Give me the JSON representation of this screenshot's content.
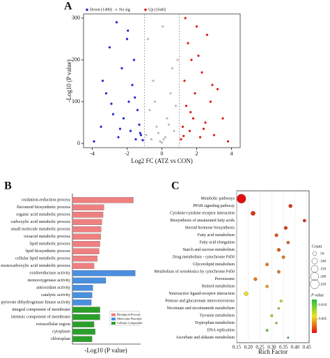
{
  "chart_data": [
    {
      "type": "scatter",
      "panel": "A",
      "xlabel": "Log2 FC (ATZ vs CON)",
      "ylabel": "-Log10 (P value)",
      "xlim": [
        -4.5,
        4.5
      ],
      "xticks": [
        -4,
        -2,
        0,
        2,
        4
      ],
      "ylim": [
        -10,
        310
      ],
      "yticks": [
        0,
        100,
        200,
        300
      ],
      "thresholds": [
        -1,
        1
      ],
      "series": [
        {
          "name": "Down (1490)",
          "color": "#2222cc",
          "x": [
            -3.9,
            -3.5,
            -3.2,
            -3.0,
            -2.8,
            -2.6,
            -2.5,
            -2.3,
            -2.2,
            -2.0,
            -1.9,
            -1.8,
            -1.7,
            -1.6,
            -1.5,
            -1.4,
            -1.3,
            -1.2,
            -1.1,
            -3.4,
            -2.9,
            -2.4,
            -1.95,
            -1.55,
            -1.25
          ],
          "values": [
            5,
            40,
            120,
            230,
            70,
            290,
            15,
            180,
            60,
            250,
            100,
            30,
            140,
            200,
            10,
            80,
            45,
            20,
            8,
            150,
            95,
            35,
            270,
            110,
            25
          ]
        },
        {
          "name": "No sig",
          "color": "#bbbbbb",
          "x": [
            -0.9,
            -0.7,
            -0.5,
            -0.3,
            -0.1,
            0,
            0.1,
            0.3,
            0.5,
            0.7,
            0.9,
            -0.8,
            -0.4,
            0.2,
            0.6,
            0.8,
            -0.6,
            0.4,
            -0.2,
            0.05
          ],
          "values": [
            20,
            80,
            150,
            40,
            5,
            2,
            10,
            60,
            120,
            30,
            200,
            250,
            100,
            15,
            180,
            90,
            10,
            45,
            25,
            280
          ]
        },
        {
          "name": "Up (1640)",
          "color": "#e01515",
          "x": [
            1.1,
            1.2,
            1.3,
            1.4,
            1.5,
            1.6,
            1.7,
            1.8,
            1.9,
            2.0,
            2.2,
            2.3,
            2.5,
            2.6,
            2.8,
            3.0,
            3.2,
            3.5,
            3.8,
            1.35,
            1.65,
            2.1,
            2.4,
            2.9,
            1.25
          ],
          "values": [
            10,
            40,
            150,
            90,
            240,
            30,
            200,
            60,
            120,
            280,
            15,
            170,
            50,
            260,
            100,
            20,
            130,
            60,
            5,
            300,
            75,
            210,
            35,
            140,
            18
          ]
        }
      ]
    },
    {
      "type": "barh",
      "panel": "B",
      "xlabel": "-Log10 (P value)",
      "xlim": [
        0,
        17
      ],
      "series": [
        {
          "name": "Biological Process",
          "color": "#f08080",
          "categories": [
            "oxidation-reduction process",
            "flavonoid biosynthetic process",
            "organic acid metabolic process",
            "carboxylic acid metabolic process",
            "small molecule metabolic process",
            "oxoacid metabolic process",
            "lipid metabolic process",
            "lipid biosynthetic process",
            "cellular lipid metabolic process",
            "monocarboxylic acid metabolic process"
          ],
          "values": [
            15.5,
            8,
            7.8,
            7.5,
            7.3,
            7.2,
            7,
            6.8,
            6.3,
            5.5
          ]
        },
        {
          "name": "Molecular Function",
          "color": "#4a8fe0",
          "categories": [
            "oxidoreductase activity",
            "monooxygenase activity",
            "antioxidant activity",
            "catalytic activity",
            "pyruvate dehydrogenase kinase activity"
          ],
          "values": [
            16,
            8.5,
            5.2,
            5,
            4.8
          ]
        },
        {
          "name": "Cellular Component",
          "color": "#2aa02a",
          "categories": [
            "integral component of membrane",
            "intrinsic component of membrane",
            "extracellular region",
            "cytoplasm",
            "chloroplast"
          ],
          "values": [
            7,
            7,
            5.5,
            5.8,
            5
          ]
        }
      ]
    },
    {
      "type": "bubble",
      "panel": "C",
      "xlabel": "Rich Factor",
      "xlim": [
        0.15,
        0.46
      ],
      "xticks": [
        0.15,
        {
          "value": 0.2,
          "label": "0.20"
        },
        0.25,
        {
          "value": 0.3,
          "label": "0.30"
        },
        0.35,
        {
          "value": 0.4,
          "label": "0.40"
        },
        0.45
      ],
      "categories": [
        "Metabolic pathways",
        "PPAR signaling pathway",
        "Cytokine-cytokine receptor interaction",
        "Biosynthesis of unsaturated fatty acids",
        "Steroid hormone biosynthesis",
        "Fatty acid metabolism",
        "Fatty acid elongation",
        "Starch and sucrose metabolism",
        "Drug metabolism - cytochrome P450",
        "Glycerolipid metabolism",
        "Metabolism of xenobiotics by cytochrome P450",
        "Peroxisome",
        "Retinol metabolism",
        "Neuroactive ligand-receptor interaction",
        "Pentose and glucuronate interconversions",
        "Nicotinate and nicotinamide metabolism",
        "Tyrosine metabolism",
        "Tryptophan metabolism",
        "DNA replication",
        "Ascorbate and aldarate metabolism"
      ],
      "values": [
        0.17,
        0.38,
        0.22,
        0.44,
        0.36,
        0.32,
        0.37,
        0.33,
        0.35,
        0.28,
        0.33,
        0.23,
        0.28,
        0.19,
        0.34,
        0.33,
        0.3,
        0.32,
        0.28,
        0.37
      ],
      "counts": [
        250,
        40,
        60,
        30,
        35,
        35,
        25,
        35,
        30,
        30,
        30,
        35,
        25,
        50,
        20,
        15,
        20,
        15,
        18,
        10
      ],
      "pvalues": [
        0,
        0.001,
        0.001,
        0.001,
        0.001,
        0.002,
        0.002,
        0.002,
        0.003,
        0.003,
        0.003,
        0.003,
        0.004,
        0.006,
        0.007,
        0.008,
        0.008,
        0.009,
        0.01,
        0.012
      ],
      "size_title": "Count",
      "size_legend": [
        50,
        100,
        150,
        200,
        250
      ],
      "color_title": "P value",
      "plim": [
        0,
        0.012
      ],
      "pticks": [
        {
          "value": 0.01,
          "label": "0.010"
        },
        {
          "value": 0.005,
          "label": "0.005"
        }
      ]
    }
  ]
}
